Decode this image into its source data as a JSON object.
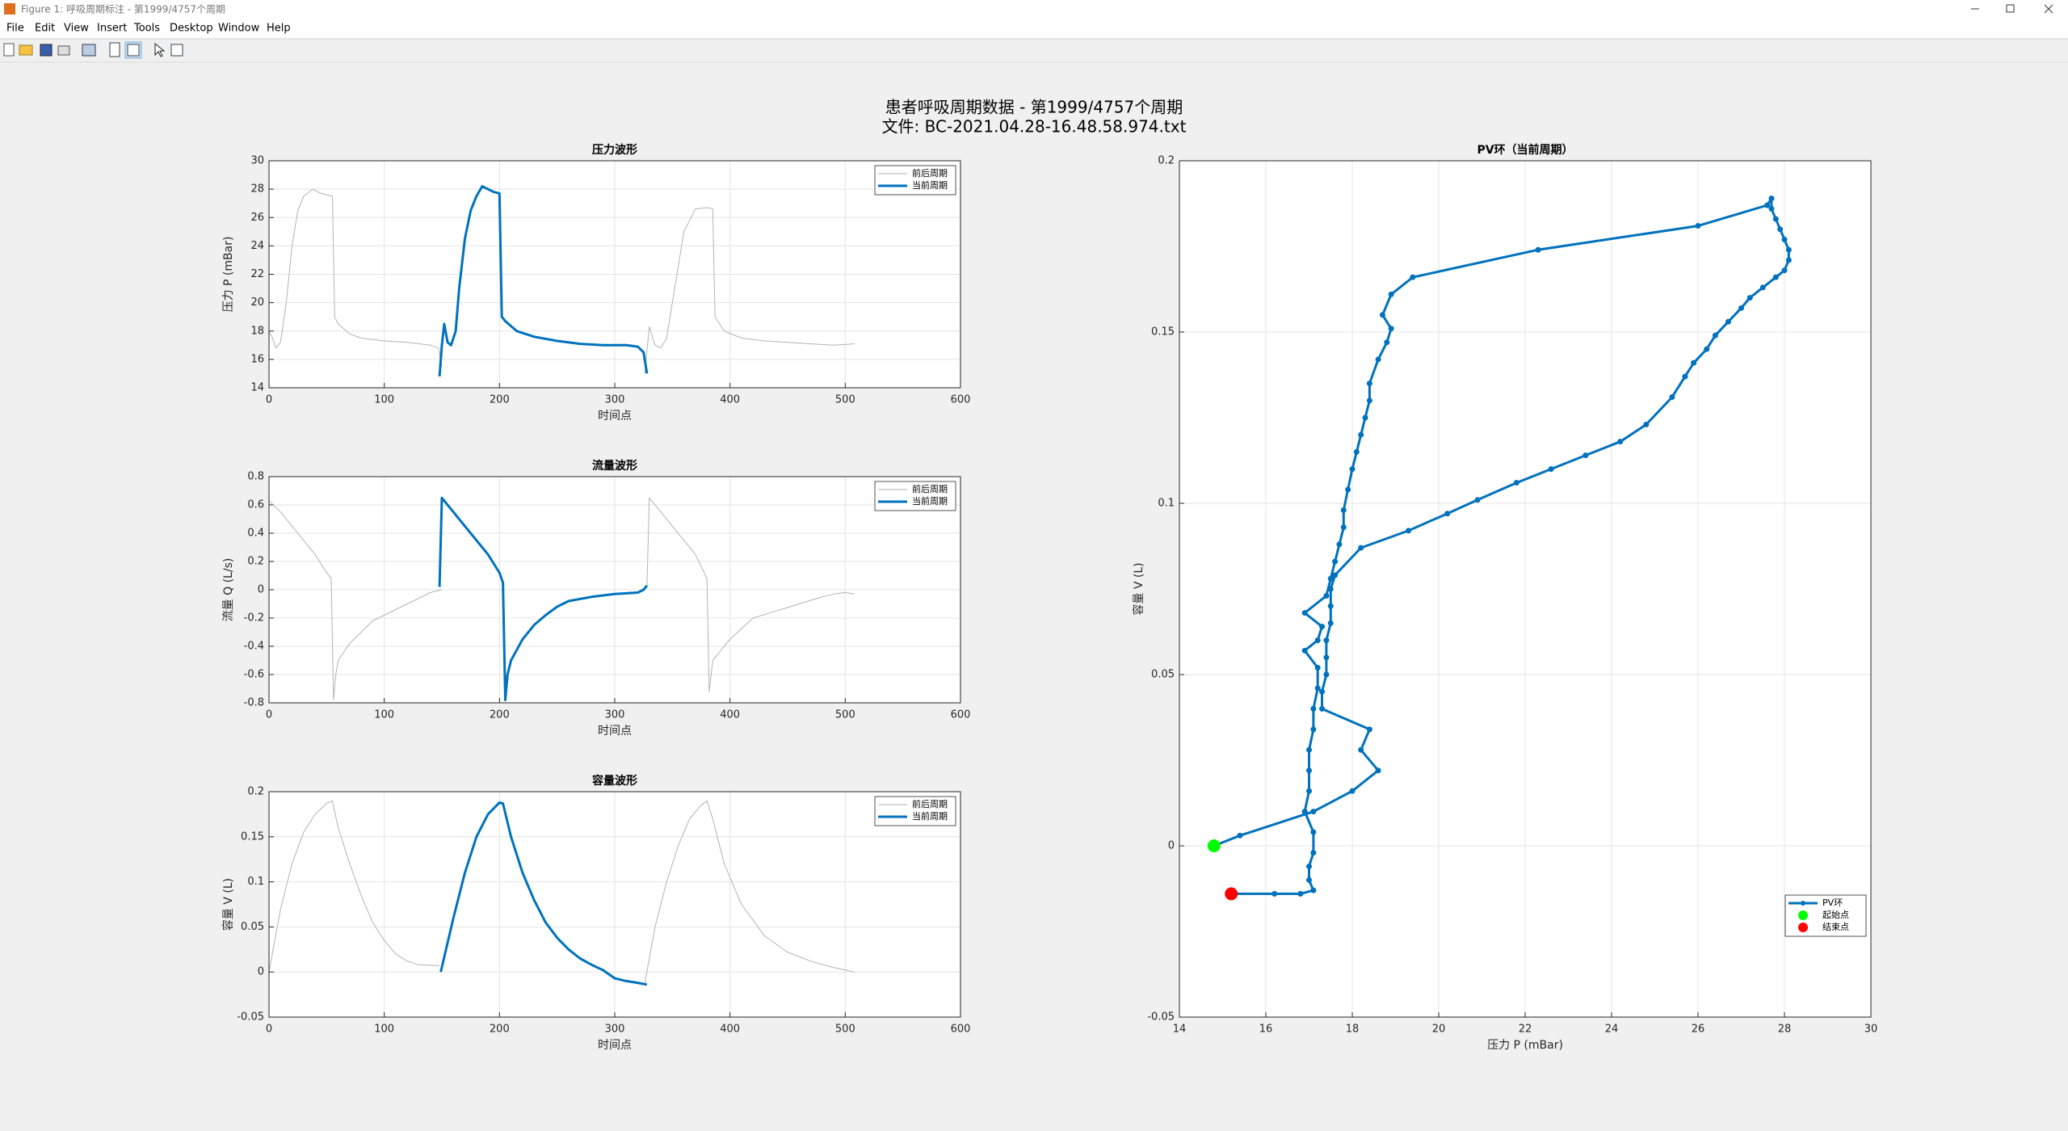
{
  "window": {
    "title": "Figure 1: 呼吸周期标注 - 第1999/4757个周期"
  },
  "menu": {
    "items": [
      "File",
      "Edit",
      "View",
      "Insert",
      "Tools",
      "Desktop",
      "Window",
      "Help"
    ]
  },
  "figure": {
    "title_lines": [
      "患者呼吸周期数据 - 第1999/4757个周期",
      "文件: BC-2021.04.28-16.48.58.974.txt"
    ]
  },
  "chart_data": [
    {
      "type": "line",
      "title": "压力波形",
      "xlabel": "时间点",
      "ylabel": "压力 P (mBar)",
      "xlim": [
        0,
        600
      ],
      "xticks": [
        0,
        100,
        200,
        300,
        400,
        500,
        600
      ],
      "ylim": [
        14,
        30
      ],
      "yticks": [
        14,
        16,
        18,
        20,
        22,
        24,
        26,
        28,
        30
      ],
      "grid": true,
      "legend": "northeast",
      "series": [
        {
          "name": "前后周期",
          "color": "#b3b3b3",
          "width": 1,
          "x": [
            0,
            3,
            6,
            10,
            15,
            20,
            25,
            30,
            38,
            45,
            50,
            55,
            57,
            60,
            70,
            80,
            100,
            120,
            140,
            147,
            150,
            null,
            326,
            330,
            335,
            340,
            345,
            350,
            360,
            370,
            380,
            385,
            387,
            395,
            410,
            430,
            450,
            470,
            490,
            508
          ],
          "values": [
            18,
            17.5,
            16.8,
            17.2,
            20,
            24,
            26.5,
            27.5,
            28,
            27.7,
            27.6,
            27.5,
            19,
            18.5,
            17.8,
            17.5,
            17.3,
            17.2,
            17,
            16.8,
            15.5,
            null,
            15,
            18.3,
            17,
            16.8,
            17.5,
            20,
            25,
            26.6,
            26.7,
            26.6,
            19,
            18,
            17.5,
            17.3,
            17.2,
            17.1,
            17,
            17.1
          ]
        },
        {
          "name": "当前周期",
          "color": "#0072bd",
          "width": 3,
          "x": [
            148,
            150,
            152,
            155,
            158,
            162,
            165,
            170,
            175,
            180,
            185,
            190,
            195,
            200,
            202,
            205,
            215,
            230,
            250,
            270,
            290,
            310,
            320,
            325,
            328
          ],
          "values": [
            14.8,
            17,
            18.5,
            17.2,
            17,
            18,
            21,
            24.5,
            26.5,
            27.5,
            28.2,
            28,
            27.8,
            27.7,
            19,
            18.7,
            18,
            17.6,
            17.3,
            17.1,
            17,
            17,
            16.9,
            16.5,
            15
          ]
        }
      ]
    },
    {
      "type": "line",
      "title": "流量波形",
      "xlabel": "时间点",
      "ylabel": "流量 Q (L/s)",
      "xlim": [
        0,
        600
      ],
      "xticks": [
        0,
        100,
        200,
        300,
        400,
        500,
        600
      ],
      "ylim": [
        -0.8,
        0.8
      ],
      "yticks": [
        -0.8,
        -0.6,
        -0.4,
        -0.2,
        0,
        0.2,
        0.4,
        0.6,
        0.8
      ],
      "grid": true,
      "legend": "northeast",
      "series": [
        {
          "name": "前后周期",
          "color": "#b3b3b3",
          "width": 1,
          "x": [
            0,
            10,
            20,
            30,
            40,
            50,
            54,
            56,
            58,
            60,
            70,
            80,
            90,
            100,
            120,
            140,
            150,
            null,
            328,
            330,
            340,
            350,
            360,
            370,
            380,
            382,
            385,
            390,
            400,
            420,
            440,
            460,
            480,
            490,
            500,
            508
          ],
          "values": [
            0.63,
            0.55,
            0.45,
            0.35,
            0.25,
            0.12,
            0.08,
            -0.78,
            -0.6,
            -0.5,
            -0.38,
            -0.3,
            -0.22,
            -0.18,
            -0.1,
            -0.02,
            0,
            null,
            0.03,
            0.65,
            0.55,
            0.45,
            0.35,
            0.25,
            0.08,
            -0.72,
            -0.5,
            -0.45,
            -0.35,
            -0.2,
            -0.15,
            -0.1,
            -0.05,
            -0.03,
            -0.02,
            -0.03
          ]
        },
        {
          "name": "当前周期",
          "color": "#0072bd",
          "width": 3,
          "x": [
            148,
            150,
            160,
            170,
            180,
            190,
            200,
            203,
            205,
            207,
            210,
            220,
            230,
            240,
            250,
            260,
            280,
            300,
            320,
            325,
            328
          ],
          "values": [
            0.02,
            0.65,
            0.55,
            0.45,
            0.35,
            0.25,
            0.12,
            0.05,
            -0.78,
            -0.6,
            -0.5,
            -0.35,
            -0.25,
            -0.18,
            -0.12,
            -0.08,
            -0.05,
            -0.03,
            -0.02,
            0,
            0.03
          ]
        }
      ]
    },
    {
      "type": "line",
      "title": "容量波形",
      "xlabel": "时间点",
      "ylabel": "容量 V (L)",
      "xlim": [
        0,
        600
      ],
      "xticks": [
        0,
        100,
        200,
        300,
        400,
        500,
        600
      ],
      "ylim": [
        -0.05,
        0.2
      ],
      "yticks": [
        -0.05,
        0,
        0.05,
        0.1,
        0.15,
        0.2
      ],
      "grid": true,
      "legend": "northeast",
      "series": [
        {
          "name": "前后周期",
          "color": "#b3b3b3",
          "width": 1,
          "x": [
            0,
            10,
            20,
            30,
            40,
            50,
            55,
            60,
            70,
            80,
            90,
            100,
            110,
            120,
            130,
            148,
            null,
            326,
            335,
            345,
            355,
            365,
            375,
            380,
            385,
            395,
            410,
            430,
            450,
            470,
            490,
            508
          ],
          "values": [
            0,
            0.07,
            0.12,
            0.155,
            0.175,
            0.187,
            0.19,
            0.16,
            0.12,
            0.085,
            0.055,
            0.035,
            0.02,
            0.012,
            0.008,
            0.007,
            null,
            -0.013,
            0.05,
            0.1,
            0.14,
            0.17,
            0.185,
            0.19,
            0.17,
            0.12,
            0.075,
            0.04,
            0.022,
            0.012,
            0.005,
            0
          ]
        },
        {
          "name": "当前周期",
          "color": "#0072bd",
          "width": 3,
          "x": [
            149,
            160,
            170,
            180,
            190,
            200,
            203,
            210,
            220,
            230,
            240,
            250,
            260,
            270,
            280,
            290,
            300,
            310,
            320,
            328
          ],
          "values": [
            0,
            0.06,
            0.11,
            0.15,
            0.175,
            0.188,
            0.187,
            0.15,
            0.11,
            0.08,
            0.055,
            0.038,
            0.025,
            0.015,
            0.008,
            0.002,
            -0.007,
            -0.01,
            -0.012,
            -0.014
          ]
        }
      ]
    },
    {
      "type": "line",
      "title": "PV环（当前周期）",
      "xlabel": "压力 P (mBar)",
      "ylabel": "容量 V (L)",
      "xlim": [
        14,
        30
      ],
      "xticks": [
        14,
        16,
        18,
        20,
        22,
        24,
        26,
        28,
        30
      ],
      "ylim": [
        -0.05,
        0.2
      ],
      "yticks": [
        -0.05,
        0,
        0.05,
        0.1,
        0.15,
        0.2
      ],
      "grid": true,
      "legend": "southeast",
      "series": [
        {
          "name": "PV环",
          "color": "#0072bd",
          "width": 3,
          "marker": "o",
          "x": [
            14.8,
            15.4,
            17.1,
            18,
            18.6,
            18.2,
            18.4,
            17.3,
            17.3,
            17.4,
            17.4,
            17.4,
            17.5,
            17.5,
            17.5,
            17.6,
            18.2,
            19.3,
            20.2,
            20.9,
            21.8,
            22.6,
            23.4,
            24.2,
            24.8,
            25.4,
            25.7,
            25.9,
            26.2,
            26.4,
            26.7,
            27,
            27.2,
            27.5,
            27.8,
            28,
            28.1,
            28.1,
            28,
            27.9,
            27.8,
            27.7,
            27.7,
            27.6,
            26,
            22.3,
            19.4,
            18.9,
            18.7,
            18.9,
            18.8,
            18.6,
            18.4,
            18.4,
            18.3,
            18.2,
            18.1,
            18,
            17.9,
            17.8,
            17.8,
            17.7,
            17.6,
            17.5,
            17.4,
            16.9,
            17.3,
            17.2,
            16.9,
            17.2,
            17.2,
            17.1,
            17.1,
            17,
            17,
            17,
            16.9,
            17.1,
            17.1,
            17,
            17,
            17.1,
            16.8,
            16.2,
            15.2
          ],
          "values": [
            0,
            0.003,
            0.01,
            0.016,
            0.022,
            0.028,
            0.034,
            0.04,
            0.045,
            0.05,
            0.055,
            0.06,
            0.065,
            0.07,
            0.075,
            0.079,
            0.087,
            0.092,
            0.097,
            0.101,
            0.106,
            0.11,
            0.114,
            0.118,
            0.123,
            0.131,
            0.137,
            0.141,
            0.145,
            0.149,
            0.153,
            0.157,
            0.16,
            0.163,
            0.166,
            0.168,
            0.171,
            0.174,
            0.177,
            0.18,
            0.183,
            0.186,
            0.189,
            0.187,
            0.181,
            0.174,
            0.166,
            0.161,
            0.155,
            0.151,
            0.147,
            0.142,
            0.135,
            0.13,
            0.125,
            0.12,
            0.115,
            0.11,
            0.104,
            0.098,
            0.093,
            0.088,
            0.083,
            0.078,
            0.073,
            0.068,
            0.064,
            0.06,
            0.057,
            0.052,
            0.046,
            0.04,
            0.034,
            0.028,
            0.022,
            0.016,
            0.01,
            0.004,
            -0.002,
            -0.006,
            -0.01,
            -0.013,
            -0.014,
            -0.014,
            -0.014
          ]
        },
        {
          "name": "起始点",
          "color": "#00ff00",
          "marker": "o",
          "line": false,
          "x": [
            14.8
          ],
          "values": [
            0
          ]
        },
        {
          "name": "结束点",
          "color": "#ff0000",
          "marker": "o",
          "line": false,
          "x": [
            15.2
          ],
          "values": [
            -0.014
          ]
        }
      ]
    }
  ]
}
